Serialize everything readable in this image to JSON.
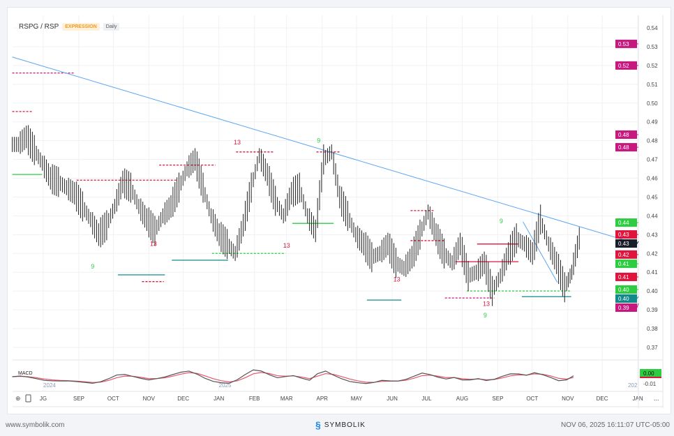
{
  "header": {
    "symbol": "RSPG / RSP",
    "type_badge": "EXPRESSION",
    "interval_badge": "Daily"
  },
  "footer": {
    "site": "www.symbolik.com",
    "brand": "SYMBOLIK",
    "timestamp": "NOV 06, 2025 16:11:07 UTC-05:00"
  },
  "chart_data": {
    "type": "ohlc",
    "price_axis": {
      "ticks": [
        0.37,
        0.38,
        0.39,
        0.4,
        0.41,
        0.42,
        0.43,
        0.44,
        0.45,
        0.46,
        0.47,
        0.48,
        0.49,
        0.5,
        0.51,
        0.52,
        0.53,
        0.54
      ],
      "range": [
        0.365,
        0.545
      ]
    },
    "time_axis": {
      "labels": [
        {
          "date": "2024-08-01",
          "text": "JG"
        },
        {
          "date": "2024-09-01",
          "text": "SEP"
        },
        {
          "date": "2024-10-01",
          "text": "OCT"
        },
        {
          "date": "2024-11-01",
          "text": "NOV"
        },
        {
          "date": "2024-12-01",
          "text": "DEC"
        },
        {
          "date": "2025-01-01",
          "text": "JAN"
        },
        {
          "date": "2025-02-01",
          "text": "FEB"
        },
        {
          "date": "2025-03-01",
          "text": "MAR"
        },
        {
          "date": "2025-04-01",
          "text": "APR"
        },
        {
          "date": "2025-05-01",
          "text": "MAY"
        },
        {
          "date": "2025-06-01",
          "text": "JUN"
        },
        {
          "date": "2025-07-01",
          "text": "JUL"
        },
        {
          "date": "2025-08-01",
          "text": "AUG"
        },
        {
          "date": "2025-09-01",
          "text": "SEP"
        },
        {
          "date": "2025-10-01",
          "text": "OCT"
        },
        {
          "date": "2025-11-01",
          "text": "NOV"
        },
        {
          "date": "2025-12-01",
          "text": "DEC"
        },
        {
          "date": "2026-01-01",
          "text": "JAN"
        }
      ],
      "year_labels": [
        {
          "date": "2024-08-01",
          "text": "2024"
        },
        {
          "date": "2025-01-01",
          "text": "2025"
        },
        {
          "date": "2026-01-01",
          "text": "202"
        }
      ]
    },
    "series": [
      {
        "dates": [
          "2024-07-05",
          "2024-07-12",
          "2024-07-19",
          "2024-07-26",
          "2024-08-02",
          "2024-08-09",
          "2024-08-16",
          "2024-08-23",
          "2024-08-30",
          "2024-09-06",
          "2024-09-13",
          "2024-09-20",
          "2024-09-27",
          "2024-10-04",
          "2024-10-11",
          "2024-10-18",
          "2024-10-25",
          "2024-11-01",
          "2024-11-08",
          "2024-11-15",
          "2024-11-22",
          "2024-11-29",
          "2024-12-06",
          "2024-12-13",
          "2024-12-20",
          "2024-12-27",
          "2025-01-03",
          "2025-01-10",
          "2025-01-17",
          "2025-01-24",
          "2025-01-31",
          "2025-02-07",
          "2025-02-14",
          "2025-02-21",
          "2025-02-28",
          "2025-03-07",
          "2025-03-14",
          "2025-03-21",
          "2025-03-28",
          "2025-04-04",
          "2025-04-11",
          "2025-04-18",
          "2025-04-25",
          "2025-05-02",
          "2025-05-09",
          "2025-05-16",
          "2025-05-23",
          "2025-05-30",
          "2025-06-06",
          "2025-06-13",
          "2025-06-20",
          "2025-06-27",
          "2025-07-04",
          "2025-07-11",
          "2025-07-18",
          "2025-07-25",
          "2025-08-01",
          "2025-08-08",
          "2025-08-15",
          "2025-08-22",
          "2025-08-29",
          "2025-09-05",
          "2025-09-12",
          "2025-09-19",
          "2025-09-26",
          "2025-10-03",
          "2025-10-10",
          "2025-10-17",
          "2025-10-24",
          "2025-10-31",
          "2025-11-06"
        ],
        "close": [
          0.478,
          0.482,
          0.475,
          0.468,
          0.46,
          0.458,
          0.455,
          0.452,
          0.445,
          0.438,
          0.43,
          0.435,
          0.445,
          0.458,
          0.455,
          0.445,
          0.438,
          0.432,
          0.44,
          0.445,
          0.455,
          0.465,
          0.47,
          0.455,
          0.44,
          0.43,
          0.425,
          0.42,
          0.435,
          0.455,
          0.472,
          0.462,
          0.448,
          0.44,
          0.452,
          0.455,
          0.44,
          0.432,
          0.47,
          0.474,
          0.45,
          0.44,
          0.43,
          0.425,
          0.418,
          0.42,
          0.425,
          0.415,
          0.412,
          0.418,
          0.43,
          0.442,
          0.43,
          0.42,
          0.415,
          0.425,
          0.408,
          0.41,
          0.415,
          0.4,
          0.408,
          0.42,
          0.428,
          0.425,
          0.42,
          0.438,
          0.425,
          0.415,
          0.402,
          0.41,
          0.428
        ]
      }
    ],
    "trendlines": [
      {
        "from": [
          "2024-07-05",
          0.5245
        ],
        "to": [
          "2026-01-01",
          0.425
        ],
        "color": "#5aa6f0"
      },
      {
        "from": [
          "2025-09-23",
          0.4368
        ],
        "to": [
          "2025-10-23",
          0.4045
        ],
        "color": "#5aa6f0"
      }
    ],
    "levels": [
      {
        "price": 0.516,
        "from": "2024-07-05",
        "to": "2024-08-28",
        "color": "#c8177e",
        "dash": true
      },
      {
        "price": 0.4955,
        "from": "2024-07-05",
        "to": "2024-07-23",
        "color": "#e0143c",
        "dash": true
      },
      {
        "price": 0.462,
        "from": "2024-07-05",
        "to": "2024-07-31",
        "color": "#2ecc40",
        "dash": false
      },
      {
        "price": 0.459,
        "from": "2024-08-30",
        "to": "2024-11-25",
        "color": "#e0143c",
        "dash": true
      },
      {
        "price": 0.467,
        "from": "2024-11-10",
        "to": "2024-12-29",
        "color": "#e0143c",
        "dash": true
      },
      {
        "price": 0.474,
        "from": "2025-01-16",
        "to": "2025-02-18",
        "color": "#e0143c",
        "dash": true
      },
      {
        "price": 0.474,
        "from": "2025-03-27",
        "to": "2025-04-17",
        "color": "#e0143c",
        "dash": true
      },
      {
        "price": 0.4164,
        "from": "2024-11-21",
        "to": "2025-01-09",
        "color": "#138a8a",
        "dash": false
      },
      {
        "price": 0.4086,
        "from": "2024-10-05",
        "to": "2024-11-15",
        "color": "#138a8a",
        "dash": false
      },
      {
        "price": 0.405,
        "from": "2024-10-26",
        "to": "2024-11-14",
        "color": "#e0143c",
        "dash": true
      },
      {
        "price": 0.436,
        "from": "2025-03-06",
        "to": "2025-04-11",
        "color": "#2ecc40",
        "dash": false
      },
      {
        "price": 0.42,
        "from": "2024-12-26",
        "to": "2025-02-28",
        "color": "#2ecc40",
        "dash": true
      },
      {
        "price": 0.3952,
        "from": "2025-05-10",
        "to": "2025-06-09",
        "color": "#138a8a",
        "dash": false
      },
      {
        "price": 0.4428,
        "from": "2025-06-17",
        "to": "2025-07-08",
        "color": "#e0143c",
        "dash": true
      },
      {
        "price": 0.4268,
        "from": "2025-06-17",
        "to": "2025-07-17",
        "color": "#e0143c",
        "dash": true
      },
      {
        "price": 0.3963,
        "from": "2025-07-17",
        "to": "2025-08-29",
        "color": "#c8177e",
        "dash": true
      },
      {
        "price": 0.425,
        "from": "2025-08-14",
        "to": "2025-09-19",
        "color": "#e0143c",
        "dash": false
      },
      {
        "price": 0.4156,
        "from": "2025-07-26",
        "to": "2025-09-19",
        "color": "#e0143c",
        "dash": false
      },
      {
        "price": 0.397,
        "from": "2025-09-22",
        "to": "2025-11-04",
        "color": "#138a8a",
        "dash": false
      },
      {
        "price": 0.4,
        "from": "2025-08-05",
        "to": "2025-11-04",
        "color": "#2ecc40",
        "dash": true
      }
    ],
    "markers": [
      {
        "date": "2024-09-13",
        "price": 0.412,
        "text": "9",
        "color": "#2ecc40"
      },
      {
        "date": "2024-11-05",
        "price": 0.424,
        "text": "13",
        "color": "#e0143c"
      },
      {
        "date": "2025-01-17",
        "price": 0.478,
        "text": "13",
        "color": "#e0143c"
      },
      {
        "date": "2025-03-01",
        "price": 0.423,
        "text": "13",
        "color": "#e0143c"
      },
      {
        "date": "2025-03-29",
        "price": 0.479,
        "text": "9",
        "color": "#2ecc40"
      },
      {
        "date": "2025-06-05",
        "price": 0.405,
        "text": "13",
        "color": "#e0143c"
      },
      {
        "date": "2025-08-22",
        "price": 0.392,
        "text": "13",
        "color": "#e0143c"
      },
      {
        "date": "2025-08-21",
        "price": 0.386,
        "text": "9",
        "color": "#2ecc40"
      },
      {
        "date": "2025-09-04",
        "price": 0.436,
        "text": "9",
        "color": "#2ecc40"
      }
    ],
    "price_tags": [
      {
        "price": 0.5315,
        "label": "0.53",
        "color": "#c8177e"
      },
      {
        "price": 0.52,
        "label": "0.52",
        "color": "#c8177e"
      },
      {
        "price": 0.4832,
        "label": "0.48",
        "color": "#c8177e"
      },
      {
        "price": 0.4765,
        "label": "0.48",
        "color": "#c8177e"
      },
      {
        "price": 0.4364,
        "label": "0.44",
        "color": "#2ecc40"
      },
      {
        "price": 0.4301,
        "label": "0.43",
        "color": "#e0143c"
      },
      {
        "price": 0.4264,
        "label": "0.43",
        "color": "#1a1e2a"
      },
      {
        "price": 0.4194,
        "label": "0.42",
        "color": "#e0143c"
      },
      {
        "price": 0.4145,
        "label": "0.41",
        "color": "#2ecc40"
      },
      {
        "price": 0.4075,
        "label": "0.41",
        "color": "#e0143c"
      },
      {
        "price": 0.4008,
        "label": "0.40",
        "color": "#2ecc40"
      },
      {
        "price": 0.3971,
        "label": "0.40",
        "color": "#138a8a"
      },
      {
        "price": 0.3934,
        "label": "0.39",
        "color": "#c8177e"
      }
    ],
    "macd": {
      "label": "MACD",
      "tag": "0.00",
      "tag_color": "#2ecc40",
      "axis_label": "-0.01",
      "line_color": "#555555",
      "signal_color": "#e8566c"
    },
    "more_label": "..."
  }
}
